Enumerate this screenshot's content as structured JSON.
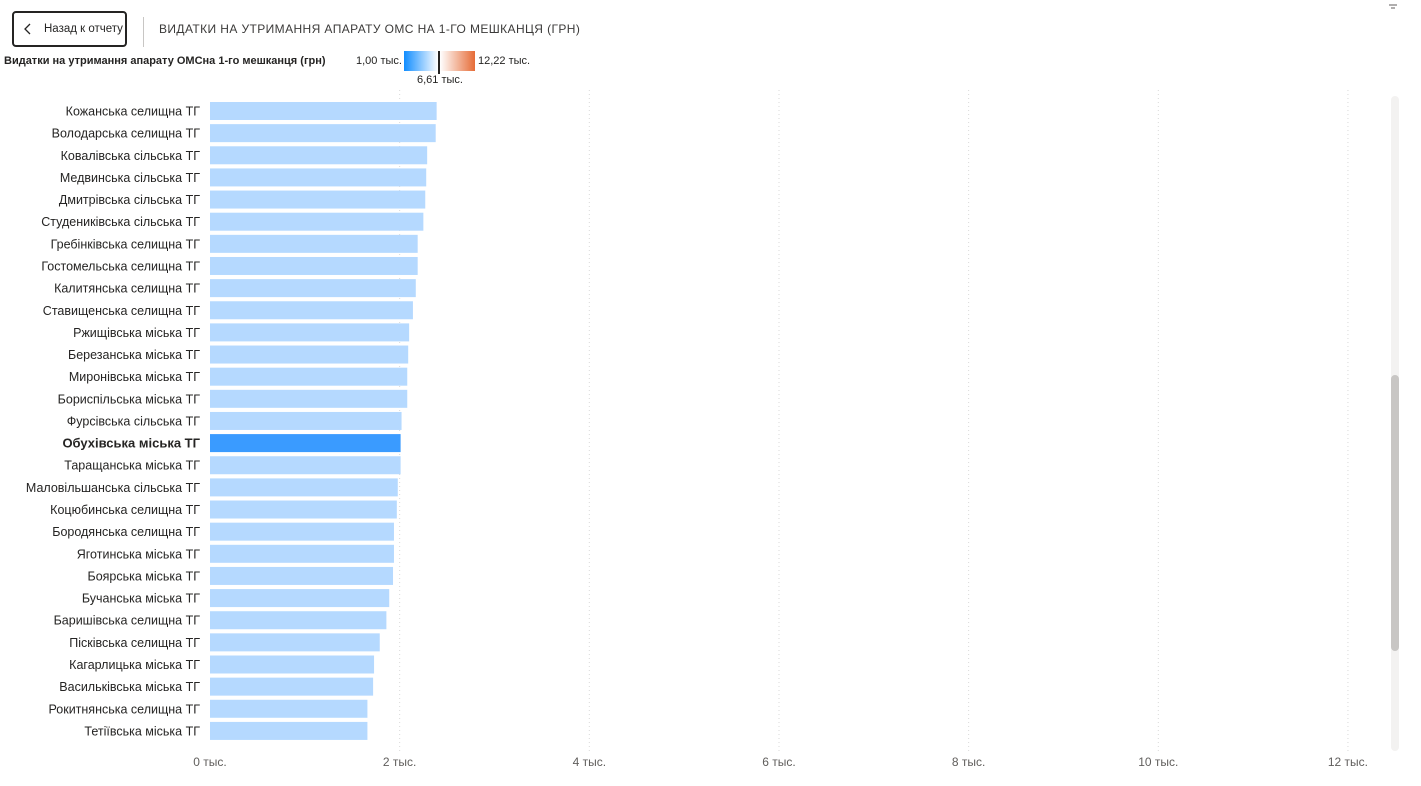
{
  "header": {
    "back_label": "Назад к отчету",
    "title": "ВИДАТКИ НА УТРИМАННЯ АПАРАТУ ОМС НА 1-ГО МЕШКАНЦЯ (ГРН)"
  },
  "legend": {
    "title": "Видатки на утримання апарату ОМСна 1-го мешканця (грн)",
    "min_label": "1,00 тыс.",
    "mid_label": "6,61 тыс.",
    "max_label": "12,22 тыс.",
    "min_color": "#118dff",
    "max_color": "#e66c37"
  },
  "colors": {
    "bar": "#b5d9ff",
    "highlight_bar": "#3a9bff",
    "gridline": "#d9d9d9"
  },
  "chart_data": {
    "type": "bar",
    "orientation": "horizontal",
    "xlim": [
      0,
      12
    ],
    "ticks": [
      0,
      2,
      4,
      6,
      8,
      10,
      12
    ],
    "tick_labels": [
      "0 тыс.",
      "2 тыс.",
      "4 тыс.",
      "6 тыс.",
      "8 тыс.",
      "10 тыс.",
      "12 тыс."
    ],
    "grid": true,
    "highlighted_category": "Обухівська міська ТГ",
    "categories": [
      "Кожанська селищна ТГ",
      "Володарська селищна ТГ",
      "Ковалівська сільська ТГ",
      "Медвинська сільська ТГ",
      "Дмитрівська сільська ТГ",
      "Студениківська сільська ТГ",
      "Гребінківська селищна ТГ",
      "Гостомельська селищна ТГ",
      "Калитянська селищна ТГ",
      "Ставищенська селищна ТГ",
      "Ржищівська міська ТГ",
      "Березанська міська ТГ",
      "Миронівська міська ТГ",
      "Бориспільська міська ТГ",
      "Фурсівська сільська ТГ",
      "Обухівська міська ТГ",
      "Таращанська міська ТГ",
      "Маловільшанська сільська ТГ",
      "Коцюбинська селищна ТГ",
      "Бородянська селищна ТГ",
      "Яготинська міська ТГ",
      "Боярська міська ТГ",
      "Бучанська міська ТГ",
      "Баришівська селищна ТГ",
      "Пісківська селищна ТГ",
      "Кагарлицька міська ТГ",
      "Васильківська міська ТГ",
      "Рокитнянська селищна ТГ",
      "Тетіївська міська ТГ"
    ],
    "values": [
      2.39,
      2.38,
      2.29,
      2.28,
      2.27,
      2.25,
      2.19,
      2.19,
      2.17,
      2.14,
      2.1,
      2.09,
      2.08,
      2.08,
      2.02,
      2.01,
      2.01,
      1.98,
      1.97,
      1.94,
      1.94,
      1.93,
      1.89,
      1.86,
      1.79,
      1.73,
      1.72,
      1.66,
      1.66
    ]
  }
}
